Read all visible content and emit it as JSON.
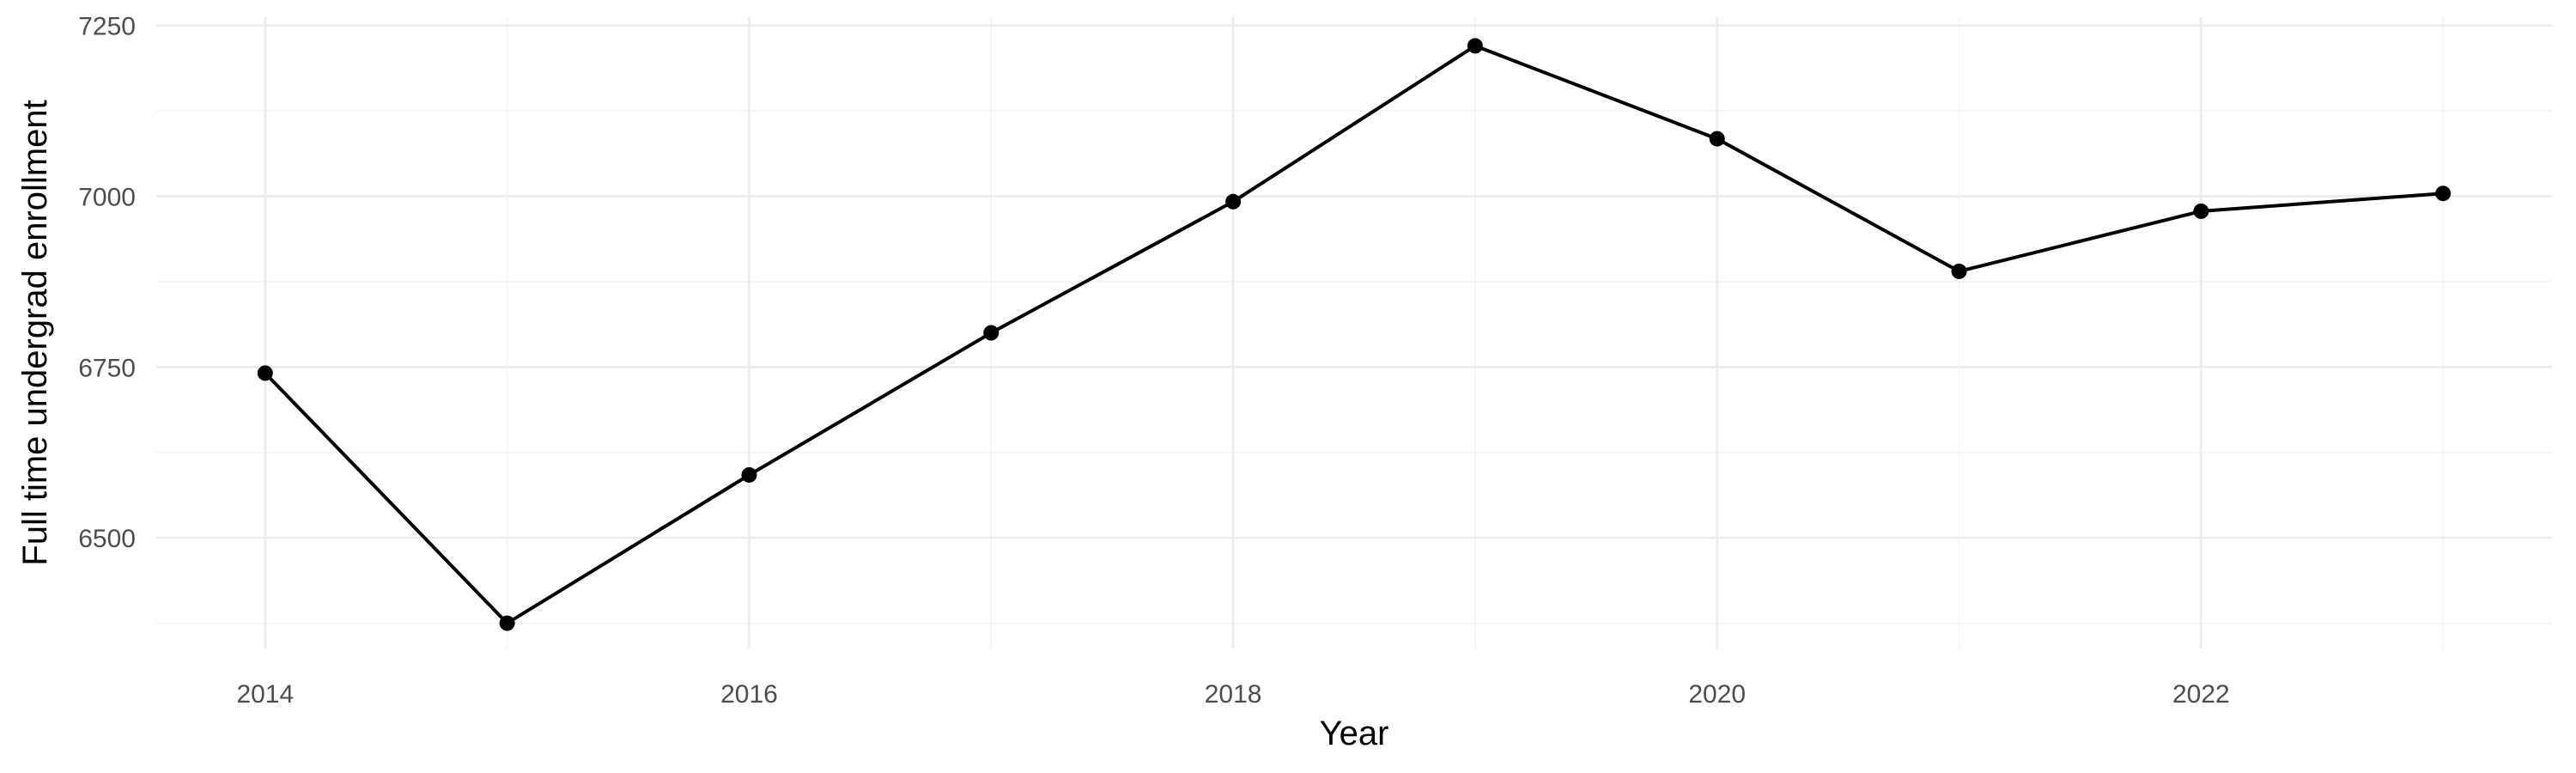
{
  "chart_data": {
    "type": "line",
    "title": "",
    "xlabel": "Year",
    "ylabel": "Full time undergrad enrollment",
    "x": [
      2014,
      2015,
      2016,
      2017,
      2018,
      2019,
      2020,
      2021,
      2022,
      2023
    ],
    "series": [
      {
        "values": [
          6741,
          6375,
          6592,
          6800,
          6992,
          7220,
          7084,
          6890,
          6978,
          7004
        ]
      }
    ],
    "xlim": [
      2013.55,
      2023.45
    ],
    "ylim": [
      6338,
      7262
    ],
    "xticks": [
      2014,
      2016,
      2018,
      2020,
      2022
    ],
    "xtick_labels": [
      "2014",
      "2016",
      "2018",
      "2020",
      "2022"
    ],
    "yticks": [
      6500,
      6750,
      7000,
      7250
    ],
    "ytick_labels": [
      "6500",
      "6750",
      "7000",
      "7250"
    ],
    "grid": true,
    "legend": "none",
    "colors": {
      "line": "#000000",
      "points": "#000000",
      "grid": "#ebebeb",
      "tick_text": "#4d4d4d",
      "background": "#ffffff"
    }
  }
}
